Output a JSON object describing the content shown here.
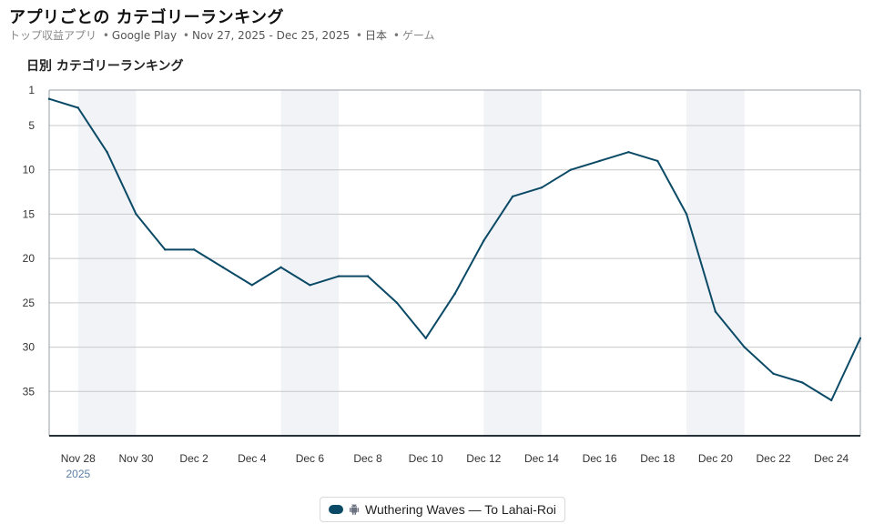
{
  "header": {
    "title": "アプリごとの カテゴリーランキング",
    "subtitle": {
      "list_type": "トップ収益アプリ",
      "store": "Google Play",
      "date_range": "Nov 27, 2025 - Dec 25, 2025",
      "country": "日本",
      "category": "ゲーム"
    }
  },
  "colors": {
    "series_line": "#0b4a66",
    "weekend_band": "#f1f3f6",
    "grid": "#c8c8c8",
    "axis": "#263238"
  },
  "chart_data": {
    "type": "line",
    "title": "日別 カテゴリーランキング",
    "y_axis": {
      "reversed": true,
      "ylim": [
        1,
        40
      ],
      "ticks": [
        1,
        5,
        10,
        15,
        20,
        25,
        30,
        35
      ]
    },
    "x_axis": {
      "range": [
        "Nov 27",
        "Dec 25"
      ],
      "ticks": [
        "Nov 28",
        "Nov 30",
        "Dec 2",
        "Dec 4",
        "Dec 6",
        "Dec 8",
        "Dec 10",
        "Dec 12",
        "Dec 14",
        "Dec 16",
        "Dec 18",
        "Dec 20",
        "Dec 22",
        "Dec 24"
      ],
      "year_label": "2025"
    },
    "grid": true,
    "shaded_weekends": [
      [
        "Nov 28",
        "Nov 30"
      ],
      [
        "Dec 5",
        "Dec 7"
      ],
      [
        "Dec 12",
        "Dec 14"
      ],
      [
        "Dec 19",
        "Dec 21"
      ]
    ],
    "x": [
      "Nov 27",
      "Nov 28",
      "Nov 29",
      "Nov 30",
      "Dec 1",
      "Dec 2",
      "Dec 3",
      "Dec 4",
      "Dec 5",
      "Dec 6",
      "Dec 7",
      "Dec 8",
      "Dec 9",
      "Dec 10",
      "Dec 11",
      "Dec 12",
      "Dec 13",
      "Dec 14",
      "Dec 15",
      "Dec 16",
      "Dec 17",
      "Dec 18",
      "Dec 19",
      "Dec 20",
      "Dec 21",
      "Dec 22",
      "Dec 23",
      "Dec 24",
      "Dec 25"
    ],
    "series": [
      {
        "name": "Wuthering Waves — To Lahai-Roi",
        "platform_icon": "android-icon",
        "values": [
          2,
          3,
          8,
          15,
          19,
          19,
          21,
          23,
          21,
          23,
          22,
          22,
          25,
          29,
          24,
          18,
          13,
          12,
          10,
          9,
          8,
          9,
          15,
          26,
          30,
          33,
          34,
          36,
          29
        ]
      }
    ]
  }
}
